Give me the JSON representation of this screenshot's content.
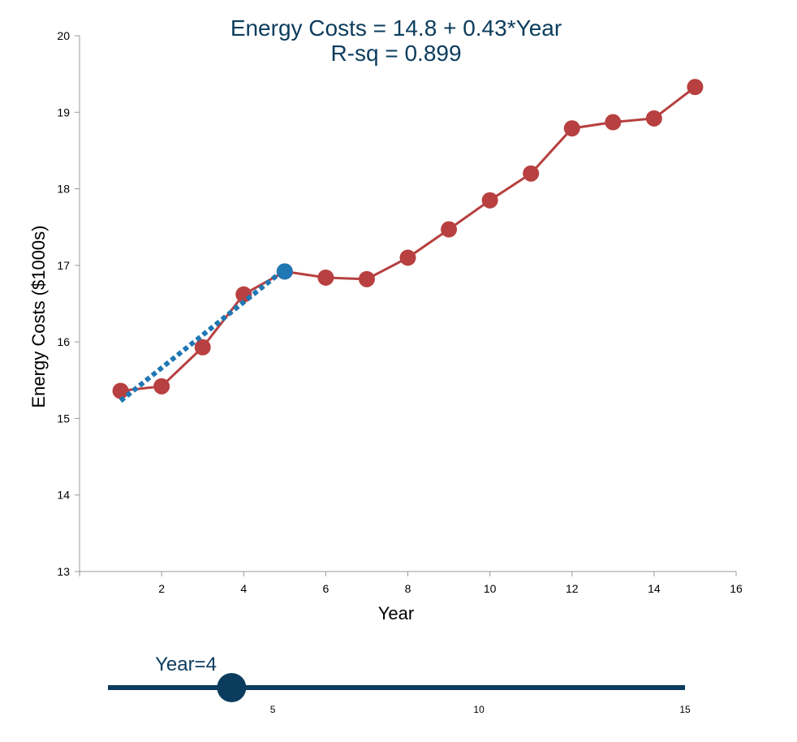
{
  "chart_data": {
    "type": "line",
    "title": "Energy Costs = 14.8 + 0.43*Year",
    "subtitle": "R-sq = 0.899",
    "xlabel": "Year",
    "ylabel": "Energy Costs ($1000s)",
    "xlim": [
      0,
      16
    ],
    "ylim": [
      13,
      20
    ],
    "x_ticks": [
      2,
      4,
      6,
      8,
      10,
      12,
      14,
      16
    ],
    "y_ticks": [
      13,
      14,
      15,
      16,
      17,
      18,
      19,
      20
    ],
    "grid": false,
    "series": [
      {
        "name": "Energy Costs",
        "color": "#b84040",
        "x": [
          1,
          2,
          3,
          4,
          5,
          6,
          7,
          8,
          9,
          10,
          11,
          12,
          13,
          14,
          15
        ],
        "values": [
          15.36,
          15.42,
          15.93,
          16.62,
          16.92,
          16.84,
          16.82,
          17.1,
          17.47,
          17.85,
          18.2,
          18.79,
          18.87,
          18.92,
          19.33
        ]
      }
    ],
    "highlight_point": {
      "x": 5,
      "y": 16.92,
      "color": "#1f77b4"
    },
    "fit_line": {
      "intercept": 14.8,
      "slope": 0.43,
      "x_range": [
        1,
        5
      ],
      "color": "#1f77b4"
    }
  },
  "slider": {
    "label": "Year=4",
    "value": 4,
    "min": 1,
    "max": 15,
    "ticks": [
      5,
      10,
      15
    ],
    "color": "#0b3c5d"
  }
}
